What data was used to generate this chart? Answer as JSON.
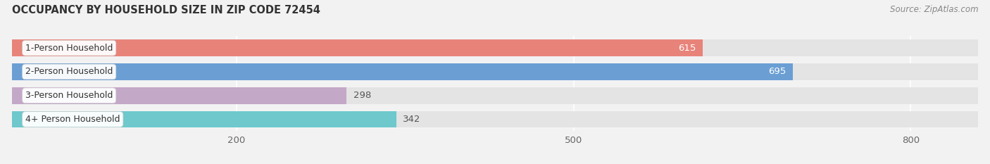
{
  "title": "OCCUPANCY BY HOUSEHOLD SIZE IN ZIP CODE 72454",
  "source": "Source: ZipAtlas.com",
  "categories": [
    "1-Person Household",
    "2-Person Household",
    "3-Person Household",
    "4+ Person Household"
  ],
  "values": [
    615,
    695,
    298,
    342
  ],
  "bar_colors": [
    "#E8837A",
    "#6B9FD4",
    "#C4A8C8",
    "#6EC8CC"
  ],
  "label_colors": [
    "white",
    "white",
    "black",
    "black"
  ],
  "row_bg_colors": [
    "#e8e8e8",
    "#e0e0e0",
    "#e8e8e8",
    "#e0e0e0"
  ],
  "xlim_max": 860,
  "xticks": [
    200,
    500,
    800
  ],
  "bg_color": "#f2f2f2",
  "bar_bg_color": "#e4e4e4",
  "title_fontsize": 10.5,
  "source_fontsize": 8.5,
  "tick_fontsize": 9.5,
  "bar_label_fontsize": 9.5,
  "category_fontsize": 9
}
